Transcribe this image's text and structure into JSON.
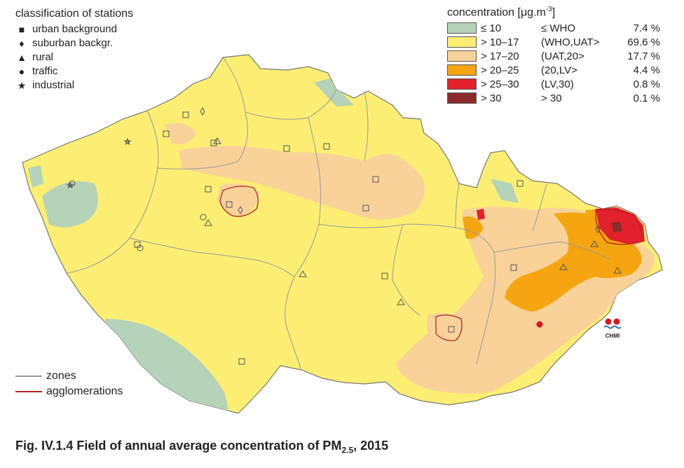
{
  "station_legend": {
    "title": "classification of stations",
    "items": [
      {
        "symbol": "■",
        "label": "urban background"
      },
      {
        "symbol": "♦",
        "label": "suburban backgr."
      },
      {
        "symbol": "▲",
        "label": "rural"
      },
      {
        "symbol": "●",
        "label": "traffic"
      },
      {
        "symbol": "★",
        "label": "industrial"
      }
    ]
  },
  "concentration_legend": {
    "title": "concentration [μg.m",
    "title_sup": "-3",
    "title_end": "]",
    "classes": [
      {
        "range": "≤ 10",
        "class": "≤ WHO",
        "percent": "7.4 %",
        "color": "#b5d3b8"
      },
      {
        "range": "> 10–17",
        "class": "(WHO,UAT>",
        "percent": "69.6 %",
        "color": "#fbee73"
      },
      {
        "range": "> 17–20",
        "class": "(UAT,20>",
        "percent": "17.7 %",
        "color": "#f9d29a"
      },
      {
        "range": "> 20–25",
        "class": "(20,LV>",
        "percent": "4.4 %",
        "color": "#f5a50f"
      },
      {
        "range": "> 25–30",
        "class": "(LV,30)",
        "percent": "0.8 %",
        "color": "#e3212b"
      },
      {
        "range": "> 30",
        "class": "> 30",
        "percent": "0.1 %",
        "color": "#8b2b2b"
      }
    ]
  },
  "line_legend": {
    "zones": "zones",
    "agglomerations": "agglomerations"
  },
  "caption": {
    "prefix": "Fig. IV.1.4  Field of annual average concentration of PM",
    "sub": "2.5",
    "suffix": ", 2015"
  },
  "logo_text": "CHMI",
  "colors": {
    "zone_line": "#999999",
    "agglomeration_line": "#b22222",
    "border": "#777777"
  }
}
